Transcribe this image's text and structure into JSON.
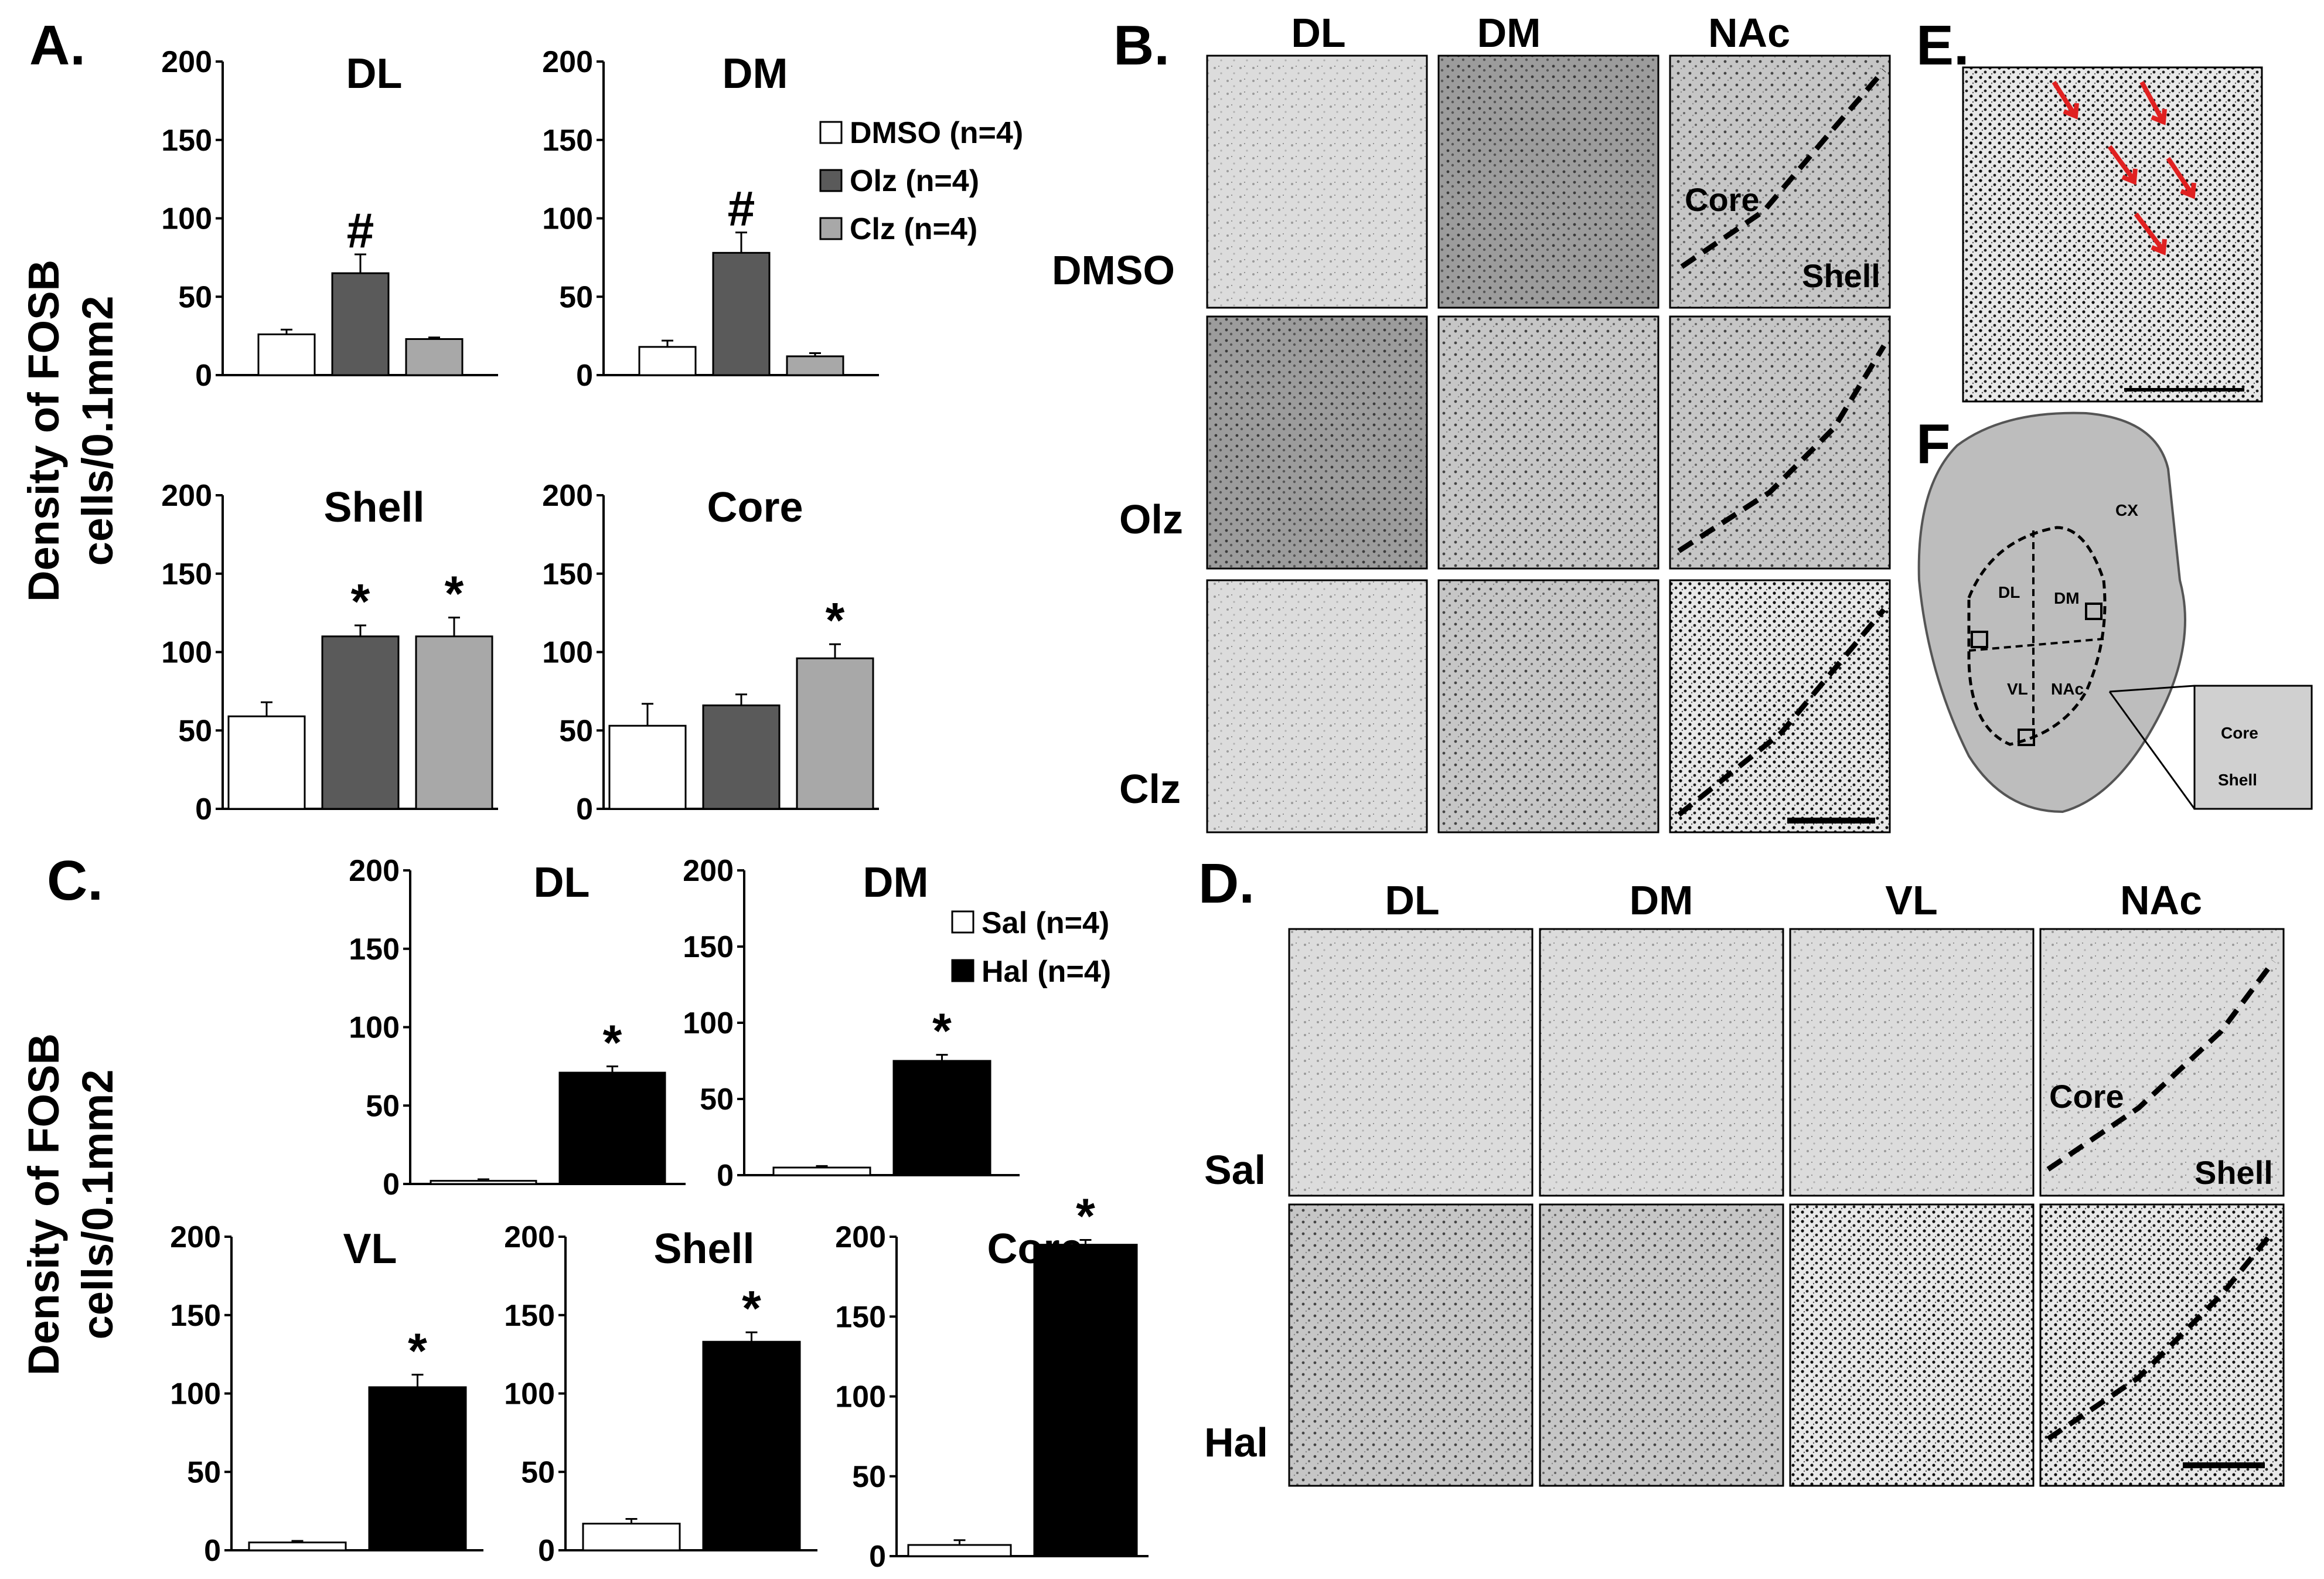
{
  "panel_letters": {
    "a": "A.",
    "b": "B.",
    "c": "C.",
    "d": "D.",
    "e": "E.",
    "f": "F."
  },
  "y_axis_label": {
    "line1": "Density of FOSB",
    "line2": "cells/0.1mm2"
  },
  "significance": {
    "hash": "#",
    "star": "*"
  },
  "legend_a": [
    {
      "label": "DMSO (n=4)",
      "color": "#ffffff"
    },
    {
      "label": "Olz (n=4)",
      "color": "#5a5a5a"
    },
    {
      "label": "Clz (n=4)",
      "color": "#a8a8a8"
    }
  ],
  "legend_c": [
    {
      "label": "Sal (n=4)",
      "color": "#ffffff"
    },
    {
      "label": "Hal (n=4)",
      "color": "#000000"
    }
  ],
  "chart_data": [
    {
      "panel": "A",
      "type": "bar",
      "title": "DL",
      "ylim": [
        0,
        200
      ],
      "yticks": [
        "0",
        "50",
        "100",
        "150",
        "200"
      ],
      "values": [
        26,
        65,
        23
      ],
      "errors": [
        3,
        12,
        1
      ],
      "colors": [
        "#ffffff",
        "#5a5a5a",
        "#a8a8a8"
      ],
      "annotations": [
        "",
        "#",
        ""
      ]
    },
    {
      "panel": "A",
      "type": "bar",
      "title": "DM",
      "ylim": [
        0,
        200
      ],
      "yticks": [
        "0",
        "50",
        "100",
        "150",
        "200"
      ],
      "values": [
        18,
        78,
        12
      ],
      "errors": [
        4,
        13,
        2
      ],
      "colors": [
        "#ffffff",
        "#5a5a5a",
        "#a8a8a8"
      ],
      "annotations": [
        "",
        "#",
        ""
      ]
    },
    {
      "panel": "A",
      "type": "bar",
      "title": "Shell",
      "ylim": [
        0,
        200
      ],
      "yticks": [
        "0",
        "50",
        "100",
        "150",
        "200"
      ],
      "values": [
        59,
        110,
        110
      ],
      "errors": [
        9,
        7,
        12
      ],
      "colors": [
        "#ffffff",
        "#5a5a5a",
        "#a8a8a8"
      ],
      "annotations": [
        "",
        "*",
        "*"
      ]
    },
    {
      "panel": "A",
      "type": "bar",
      "title": "Core",
      "ylim": [
        0,
        200
      ],
      "yticks": [
        "0",
        "50",
        "100",
        "150",
        "200"
      ],
      "values": [
        53,
        66,
        96
      ],
      "errors": [
        14,
        7,
        9
      ],
      "colors": [
        "#ffffff",
        "#5a5a5a",
        "#a8a8a8"
      ],
      "annotations": [
        "",
        "",
        "*"
      ]
    },
    {
      "panel": "C",
      "type": "bar",
      "title": "DL",
      "ylim": [
        0,
        200
      ],
      "yticks": [
        "0",
        "50",
        "100",
        "150",
        "200"
      ],
      "values": [
        2,
        71
      ],
      "errors": [
        1,
        4
      ],
      "colors": [
        "#ffffff",
        "#000000"
      ],
      "annotations": [
        "",
        "*"
      ]
    },
    {
      "panel": "C",
      "type": "bar",
      "title": "DM",
      "ylim": [
        0,
        200
      ],
      "yticks": [
        "0",
        "50",
        "100",
        "150",
        "200"
      ],
      "values": [
        5,
        75
      ],
      "errors": [
        1,
        4
      ],
      "colors": [
        "#ffffff",
        "#000000"
      ],
      "annotations": [
        "",
        "*"
      ]
    },
    {
      "panel": "C",
      "type": "bar",
      "title": "VL",
      "ylim": [
        0,
        200
      ],
      "yticks": [
        "0",
        "50",
        "100",
        "150",
        "200"
      ],
      "values": [
        5,
        104
      ],
      "errors": [
        1,
        8
      ],
      "colors": [
        "#ffffff",
        "#000000"
      ],
      "annotations": [
        "",
        "*"
      ]
    },
    {
      "panel": "C",
      "type": "bar",
      "title": "Shell",
      "ylim": [
        0,
        200
      ],
      "yticks": [
        "0",
        "50",
        "100",
        "150",
        "200"
      ],
      "values": [
        17,
        133
      ],
      "errors": [
        3,
        6
      ],
      "colors": [
        "#ffffff",
        "#000000"
      ],
      "annotations": [
        "",
        "*"
      ]
    },
    {
      "panel": "C",
      "type": "bar",
      "title": "Core",
      "ylim": [
        0,
        200
      ],
      "yticks": [
        "0",
        "50",
        "100",
        "150",
        "200"
      ],
      "values": [
        7,
        195
      ],
      "errors": [
        3,
        3
      ],
      "colors": [
        "#ffffff",
        "#000000"
      ],
      "annotations": [
        "",
        "*"
      ]
    }
  ],
  "micrographs_b": {
    "columns": [
      "DL",
      "DM",
      "NAc"
    ],
    "rows": [
      "DMSO",
      "Olz",
      "Clz"
    ],
    "region_labels": [
      "Core",
      "Shell"
    ]
  },
  "micrographs_d": {
    "columns": [
      "DL",
      "DM",
      "VL",
      "NAc"
    ],
    "rows": [
      "Sal",
      "Hal"
    ],
    "region_labels": [
      "Core",
      "Shell"
    ]
  },
  "atlas_f": {
    "labels": [
      "CX",
      "DL",
      "DM",
      "VL",
      "NAc",
      "Core",
      "Shell"
    ]
  }
}
